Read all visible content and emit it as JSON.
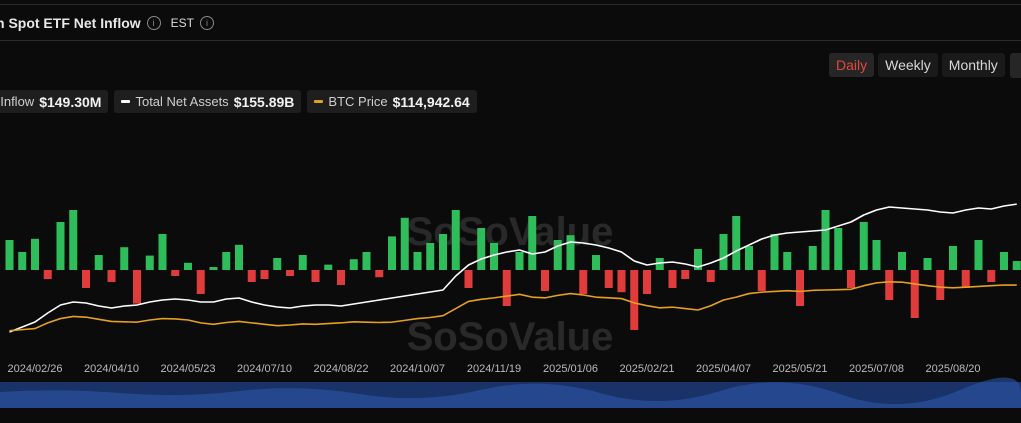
{
  "chart_data": {
    "type": "bar",
    "title": "n Spot ETF Net Inflow",
    "timezone": "EST",
    "periods": [
      "Daily",
      "Weekly",
      "Monthly"
    ],
    "selected_period": 0,
    "watermark": "SoSoValue",
    "categories": [
      null,
      null,
      "2024/02/26",
      null,
      null,
      null,
      null,
      null,
      "2024/04/10",
      null,
      null,
      null,
      null,
      null,
      "2024/05/23",
      null,
      null,
      null,
      null,
      null,
      "2024/07/10",
      null,
      null,
      null,
      null,
      null,
      "2024/08/22",
      null,
      null,
      null,
      null,
      null,
      "2024/10/07",
      null,
      null,
      null,
      null,
      null,
      "2024/11/19",
      null,
      null,
      null,
      null,
      null,
      "2025/01/06",
      null,
      null,
      null,
      null,
      null,
      "2025/02/21",
      null,
      null,
      null,
      null,
      null,
      "2025/04/07",
      null,
      null,
      null,
      null,
      null,
      "2025/05/21",
      null,
      null,
      null,
      null,
      null,
      "2025/07/08",
      null,
      null,
      null,
      null,
      null,
      "2025/08/20",
      null,
      null,
      null,
      null,
      null
    ],
    "series": [
      {
        "name": "t Inflow",
        "latest": "$149.30M",
        "positive_color": "#2ebd5a",
        "negative_color": "#e03c3c",
        "values": [
          500,
          300,
          520,
          -150,
          800,
          1000,
          -300,
          250,
          -200,
          380,
          -560,
          240,
          600,
          -100,
          120,
          -400,
          50,
          300,
          420,
          -200,
          -150,
          200,
          -100,
          250,
          -200,
          90,
          -250,
          180,
          300,
          -120,
          560,
          870,
          300,
          450,
          600,
          1000,
          -300,
          700,
          450,
          -600,
          300,
          900,
          -350,
          500,
          580,
          -400,
          250,
          -300,
          -370,
          -1000,
          -400,
          200,
          -300,
          -150,
          350,
          -200,
          600,
          900,
          400,
          -350,
          600,
          300,
          -600,
          400,
          1000,
          700,
          -300,
          800,
          500,
          -500,
          300,
          -800,
          200,
          -500,
          400,
          -300,
          500,
          -200,
          300,
          149.3
        ]
      },
      {
        "name": "Total Net Assets",
        "latest": "$155.89B",
        "color": "#ffffff",
        "axis": "y2",
        "values": [
          28,
          33,
          38,
          47,
          55,
          58,
          57,
          54,
          52,
          54,
          55,
          58,
          60,
          61,
          60,
          58,
          58,
          61,
          62,
          58,
          55,
          53,
          52,
          54,
          55,
          55,
          54,
          56,
          58,
          60,
          62,
          64,
          66,
          68,
          70,
          84,
          95,
          101,
          105,
          108,
          110,
          106,
          108,
          114,
          118,
          117,
          115,
          112,
          108,
          99,
          95,
          97,
          98,
          96,
          93,
          97,
          102,
          109,
          115,
          121,
          125,
          127,
          128,
          129,
          130,
          134,
          138,
          145,
          150,
          153,
          152,
          151,
          150,
          148,
          147,
          150,
          152,
          151,
          154,
          155.89
        ]
      },
      {
        "name": "BTC Price",
        "latest": "$114,942.64",
        "color": "#e6a020",
        "axis": "y3",
        "values": [
          51000,
          52500,
          54000,
          62000,
          68000,
          71000,
          70000,
          67000,
          64000,
          63500,
          63000,
          66000,
          68000,
          67500,
          66000,
          62000,
          60000,
          62500,
          64000,
          62000,
          60000,
          58000,
          59000,
          60500,
          60000,
          61000,
          62000,
          63500,
          63000,
          62500,
          63000,
          65500,
          68000,
          69500,
          72000,
          82000,
          92000,
          95000,
          97000,
          99500,
          102000,
          98000,
          97000,
          100500,
          103000,
          101000,
          98000,
          97000,
          96000,
          90000,
          86000,
          83000,
          84000,
          82000,
          80000,
          86000,
          94000,
          98000,
          103000,
          105000,
          106000,
          107000,
          106000,
          107500,
          108000,
          108500,
          109000,
          114000,
          118000,
          119500,
          119000,
          116500,
          114000,
          112000,
          111000,
          112000,
          113000,
          114000,
          115000,
          114942.64
        ]
      }
    ],
    "ylim": [
      -1500,
      2000
    ],
    "y2lim": [
      0,
      210
    ],
    "y3lim": [
      10000,
      304000
    ]
  }
}
